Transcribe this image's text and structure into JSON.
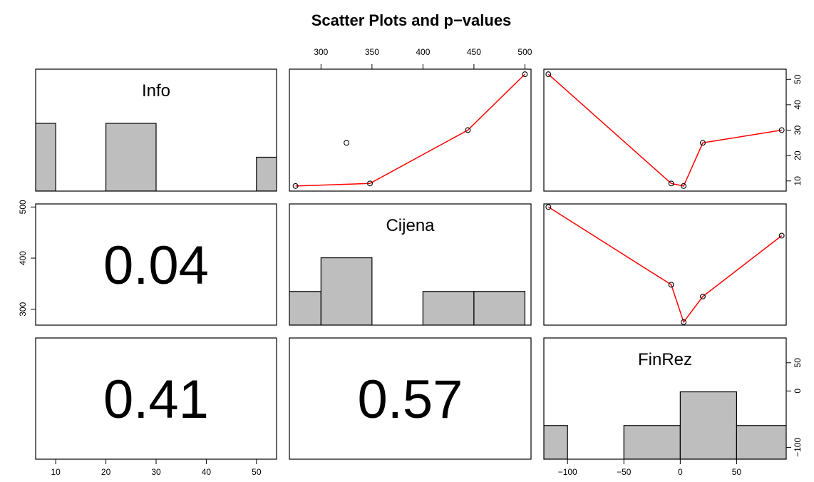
{
  "chart_data": {
    "type": "scatter",
    "title": "Scatter Plots and p−values",
    "variables": [
      "Info",
      "Cijena",
      "FinRez"
    ],
    "observations": {
      "Info": [
        8,
        9,
        30,
        52,
        25
      ],
      "Cijena": [
        275,
        348,
        444,
        500,
        325
      ],
      "FinRez": [
        3,
        -8,
        90,
        -117,
        20
      ]
    },
    "axis_ranges": {
      "Info": [
        6,
        54
      ],
      "Cijena": [
        269,
        506
      ],
      "FinRez": [
        -121,
        94
      ]
    },
    "axis_ticks": {
      "Info": {
        "bottom": [
          "10",
          "20",
          "30",
          "40",
          "50"
        ],
        "right": [
          "10",
          "20",
          "30",
          "40",
          "50"
        ]
      },
      "Cijena": {
        "top": [
          "300",
          "350",
          "400",
          "450",
          "500"
        ],
        "left": [
          "300",
          "400",
          "500"
        ]
      },
      "FinRez": {
        "bottom": [
          "−100",
          "−50",
          "0",
          "50"
        ],
        "right": [
          "−100",
          "0",
          "50"
        ]
      }
    },
    "histograms": {
      "Info": {
        "breaks": [
          0,
          10,
          20,
          30,
          40,
          50,
          60
        ],
        "counts": [
          2,
          0,
          2,
          0,
          0,
          1
        ],
        "ylim": [
          0,
          3.6
        ]
      },
      "Cijena": {
        "breaks": [
          250,
          300,
          350,
          400,
          450,
          500
        ],
        "counts": [
          1,
          2,
          0,
          1,
          1
        ],
        "ylim": [
          0,
          3.6
        ]
      },
      "FinRez": {
        "breaks": [
          -150,
          -100,
          -50,
          0,
          50,
          100
        ],
        "counts": [
          1,
          0,
          1,
          2,
          1
        ],
        "ylim": [
          0,
          3.6
        ]
      }
    },
    "p_values": [
      {
        "row": "Cijena",
        "col": "Info",
        "label": "0.04"
      },
      {
        "row": "FinRez",
        "col": "Info",
        "label": "0.41"
      },
      {
        "row": "FinRez",
        "col": "Cijena",
        "label": "0.57"
      }
    ],
    "marker": "open-circle",
    "line_color": "#ff0000",
    "bar_color": "#bebebe",
    "grid": false
  }
}
